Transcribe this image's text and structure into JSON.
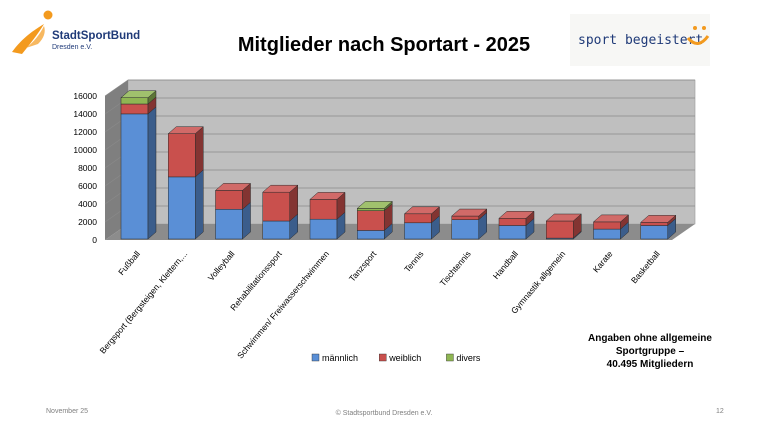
{
  "header": {
    "logo_left_line1": "StadtSportBund",
    "logo_left_line2": "Dresden e.V.",
    "logo_right_text": "sport begeistert",
    "title": "Mitglieder nach Sportart - 2025"
  },
  "colors": {
    "maennlich": "#5a8fd6",
    "weiblich": "#c9504d",
    "divers": "#8fb653",
    "wall": "#bfbfbf",
    "floor": "#8c8c8c"
  },
  "chart_data": {
    "type": "bar",
    "stacked": true,
    "title": "Mitglieder nach Sportart - 2025",
    "xlabel": "",
    "ylabel": "",
    "ylim": [
      0,
      16000
    ],
    "yticks": [
      "0",
      "2000",
      "4000",
      "6000",
      "8000",
      "10000",
      "12000",
      "14000",
      "16000"
    ],
    "categories": [
      "Fußball",
      "Bergsport (Bergsteigen, Klettern,...",
      "Volleyball",
      "Rehabilitationssport",
      "Schwimmen/ Freiwasserschwimmen",
      "Tanzsport",
      "Tennis",
      "Tischtennis",
      "Handball",
      "Gymnastik allgemein",
      "Karate",
      "Basketball"
    ],
    "series": [
      {
        "name": "männlich",
        "values": [
          13900,
          6900,
          3300,
          2000,
          2200,
          950,
          1800,
          2150,
          1500,
          100,
          1100,
          1500
        ]
      },
      {
        "name": "weiblich",
        "values": [
          1100,
          4800,
          2100,
          3200,
          2200,
          2200,
          1000,
          400,
          800,
          1900,
          800,
          350
        ]
      },
      {
        "name": "divers",
        "values": [
          700,
          0,
          0,
          0,
          0,
          250,
          0,
          0,
          0,
          0,
          0,
          0
        ]
      }
    ],
    "legend_position": "bottom",
    "grid": true
  },
  "note": {
    "line1": "Angaben ohne allgemeine",
    "line2": "Sportgruppe –",
    "line3": "40.495 Mitgliedern"
  },
  "footer": {
    "date": "November 25",
    "copyright": "© Stadtsportbund Dresden e.V.",
    "page": "12"
  }
}
